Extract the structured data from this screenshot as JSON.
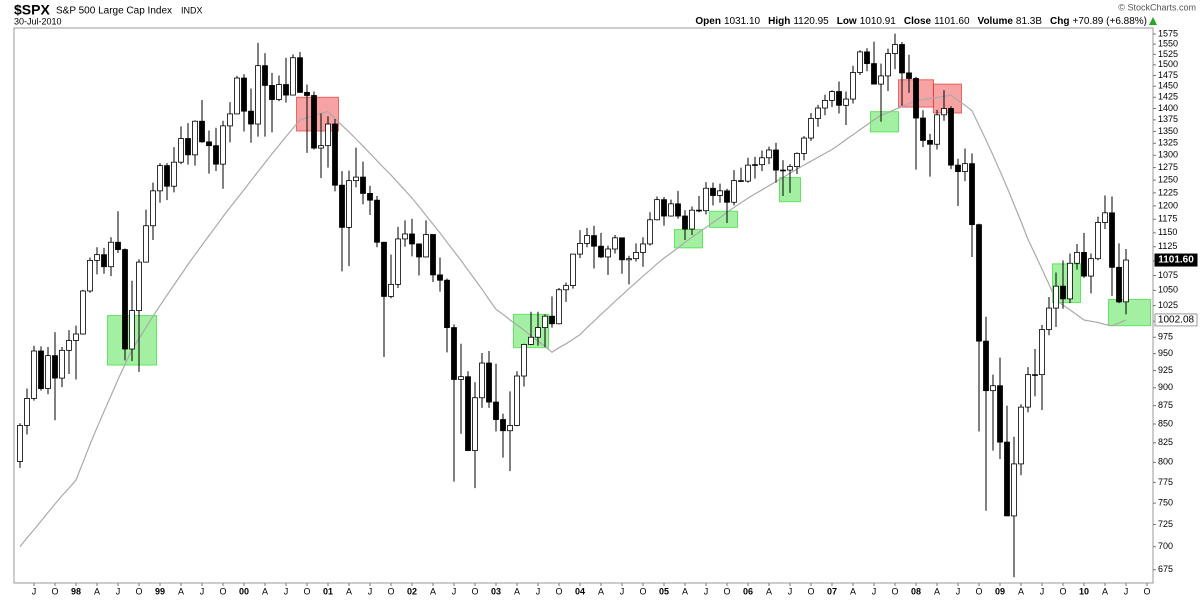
{
  "chart_data": {
    "type": "candlestick",
    "title": "$SPX",
    "subtitle": "S&P 500 Large Cap Index",
    "exchange": "INDX",
    "date": "30-Jul-2010",
    "copyright": "© StockCharts.com",
    "quote": [
      {
        "label": "Open",
        "value": "1031.10"
      },
      {
        "label": "High",
        "value": "1120.95"
      },
      {
        "label": "Low",
        "value": "1010.91"
      },
      {
        "label": "Close",
        "value": "1101.60"
      },
      {
        "label": "Volume",
        "value": "81.3B"
      },
      {
        "label": "Chg",
        "value": "+70.89 (+6.88%)"
      }
    ],
    "log_scale": true,
    "grid": false,
    "ylim": [
      661,
      1590
    ],
    "yticks": [
      675,
      700,
      725,
      750,
      775,
      800,
      825,
      850,
      875,
      900,
      925,
      950,
      975,
      1000,
      1025,
      1050,
      1075,
      1100,
      1125,
      1150,
      1175,
      1200,
      1225,
      1250,
      1275,
      1300,
      1325,
      1350,
      1375,
      1400,
      1425,
      1450,
      1475,
      1500,
      1525,
      1550,
      1575
    ],
    "categories": [
      null,
      null,
      "J",
      null,
      null,
      "O",
      null,
      null,
      "98",
      null,
      null,
      "A",
      null,
      null,
      "J",
      null,
      null,
      "O",
      null,
      null,
      "99",
      null,
      null,
      "A",
      null,
      null,
      "J",
      null,
      null,
      "O",
      null,
      null,
      "00",
      null,
      null,
      "A",
      null,
      null,
      "J",
      null,
      null,
      "O",
      null,
      null,
      "01",
      null,
      null,
      "A",
      null,
      null,
      "J",
      null,
      null,
      "O",
      null,
      null,
      "02",
      null,
      null,
      "A",
      null,
      null,
      "J",
      null,
      null,
      "O",
      null,
      null,
      "03",
      null,
      null,
      "A",
      null,
      null,
      "J",
      null,
      null,
      "O",
      null,
      null,
      "04",
      null,
      null,
      "A",
      null,
      null,
      "J",
      null,
      null,
      "O",
      null,
      null,
      "05",
      null,
      null,
      "A",
      null,
      null,
      "J",
      null,
      null,
      "O",
      null,
      null,
      "06",
      null,
      null,
      "A",
      null,
      null,
      "J",
      null,
      null,
      "O",
      null,
      null,
      "07",
      null,
      null,
      "A",
      null,
      null,
      "J",
      null,
      null,
      "O",
      null,
      null,
      "08",
      null,
      null,
      "A",
      null,
      null,
      "J",
      null,
      null,
      "O",
      null,
      null,
      "09",
      null,
      null,
      "A",
      null,
      null,
      "J",
      null,
      null,
      "O",
      null,
      null,
      "10",
      null,
      null,
      "A",
      null,
      null,
      "J",
      null,
      null,
      "O"
    ],
    "open": [
      801,
      848,
      885,
      954,
      899,
      947,
      914,
      955,
      970,
      980,
      1049,
      1101,
      1111,
      1090,
      1133,
      1120,
      957,
      1017,
      1098,
      1163,
      1229,
      1279,
      1238,
      1286,
      1335,
      1301,
      1372,
      1328,
      1320,
      1282,
      1362,
      1388,
      1469,
      1394,
      1366,
      1498,
      1452,
      1420,
      1454,
      1430,
      1517,
      1436,
      1429,
      1315,
      1320,
      1366,
      1240,
      1160,
      1249,
      1256,
      1224,
      1211,
      1133,
      1040,
      1060,
      1139,
      1148,
      1130,
      1107,
      1147,
      1076,
      1067,
      990,
      912,
      916,
      815,
      886,
      936,
      880,
      856,
      841,
      848,
      917,
      964,
      975,
      990,
      1008,
      996,
      1051,
      1058,
      1112,
      1131,
      1145,
      1126,
      1107,
      1121,
      1141,
      1102,
      1104,
      1115,
      1130,
      1174,
      1212,
      1181,
      1204,
      1181,
      1157,
      1192,
      1191,
      1234,
      1220,
      1229,
      1207,
      1249,
      1248,
      1280,
      1281,
      1295,
      1311,
      1270,
      1270,
      1277,
      1304,
      1336,
      1378,
      1401,
      1418,
      1438,
      1407,
      1421,
      1482,
      1531,
      1503,
      1455,
      1474,
      1527,
      1549,
      1481,
      1468,
      1379,
      1331,
      1323,
      1386,
      1400,
      1280,
      1267,
      1283,
      1165,
      969,
      896,
      903,
      826,
      735,
      798,
      873,
      919,
      919,
      987,
      1021,
      1057,
      1036,
      1096,
      1115,
      1074,
      1104,
      1169,
      1187,
      1089,
      1031.1,
      null,
      null,
      null
    ],
    "high": [
      851,
      899,
      962,
      961,
      960,
      983,
      960,
      986,
      993,
      1051,
      1106,
      1124,
      1123,
      1142,
      1190,
      1122,
      1066,
      1103,
      1193,
      1245,
      1284,
      1284,
      1317,
      1361,
      1368,
      1374,
      1419,
      1352,
      1358,
      1373,
      1414,
      1474,
      1478,
      1445,
      1553,
      1528,
      1481,
      1475,
      1517,
      1525,
      1531,
      1454,
      1438,
      1389,
      1383,
      1377,
      1268,
      1269,
      1316,
      1287,
      1239,
      1219,
      1134,
      1111,
      1161,
      1173,
      1176,
      1131,
      1173,
      1147,
      1106,
      1070,
      995,
      965,
      924,
      908,
      951,
      954,
      935,
      864,
      895,
      924,
      965,
      1015,
      1015,
      1011,
      1040,
      1054,
      1063,
      1112,
      1155,
      1159,
      1163,
      1150,
      1127,
      1146,
      1141,
      1109,
      1131,
      1142,
      1188,
      1218,
      1217,
      1212,
      1229,
      1192,
      1199,
      1219,
      1246,
      1245,
      1243,
      1233,
      1270,
      1275,
      1295,
      1297,
      1310,
      1318,
      1326,
      1290,
      1282,
      1306,
      1340,
      1390,
      1408,
      1431,
      1441,
      1461,
      1438,
      1498,
      1535,
      1540,
      1556,
      1503,
      1539,
      1576,
      1555,
      1524,
      1472,
      1396,
      1345,
      1397,
      1441,
      1405,
      1293,
      1314,
      1304,
      1167,
      1007,
      919,
      944,
      875,
      833,
      877,
      930,
      957,
      994,
      1039,
      1080,
      1101,
      1113,
      1130,
      1150,
      1113,
      1180,
      1220,
      1218,
      1131,
      1120.95,
      null,
      null,
      null
    ],
    "low": [
      793,
      836,
      882,
      896,
      891,
      855,
      901,
      920,
      912,
      979,
      1046,
      1077,
      1078,
      1074,
      1114,
      940,
      939,
      923,
      1097,
      1137,
      1206,
      1211,
      1226,
      1282,
      1281,
      1279,
      1326,
      1263,
      1268,
      1233,
      1327,
      1387,
      1350,
      1326,
      1339,
      1339,
      1348,
      1416,
      1413,
      1430,
      1436,
      1305,
      1312,
      1254,
      1275,
      1228,
      1082,
      1091,
      1236,
      1203,
      1183,
      1124,
      945,
      1037,
      1054,
      1125,
      1108,
      1075,
      1106,
      1064,
      1048,
      952,
      776,
      837,
      815,
      768,
      872,
      872,
      840,
      806,
      789,
      847,
      902,
      963,
      962,
      960,
      990,
      995,
      1031,
      1053,
      1105,
      1124,
      1087,
      1105,
      1076,
      1113,
      1078,
      1060,
      1099,
      1090,
      1127,
      1173,
      1163,
      1180,
      1176,
      1137,
      1146,
      1188,
      1184,
      1201,
      1206,
      1168,
      1201,
      1246,
      1245,
      1253,
      1268,
      1282,
      1245,
      1219,
      1225,
      1262,
      1290,
      1330,
      1360,
      1385,
      1403,
      1389,
      1364,
      1411,
      1476,
      1485,
      1454,
      1371,
      1439,
      1490,
      1406,
      1435,
      1271,
      1317,
      1257,
      1312,
      1373,
      1272,
      1200,
      1248,
      1107,
      840,
      741,
      815,
      804,
      735,
      667,
      784,
      866,
      888,
      869,
      978,
      991,
      1020,
      1029,
      1085,
      1071,
      1045,
      1101,
      1157,
      1041,
      1029,
      1010.91,
      null,
      null,
      null
    ],
    "close": [
      848,
      885,
      954,
      899,
      947,
      914,
      955,
      970,
      980,
      1049,
      1101,
      1111,
      1090,
      1133,
      1120,
      957,
      1017,
      1098,
      1163,
      1229,
      1279,
      1238,
      1286,
      1335,
      1301,
      1372,
      1328,
      1320,
      1282,
      1362,
      1388,
      1469,
      1394,
      1366,
      1498,
      1452,
      1420,
      1454,
      1430,
      1517,
      1436,
      1429,
      1315,
      1320,
      1366,
      1240,
      1160,
      1249,
      1256,
      1224,
      1211,
      1133,
      1040,
      1060,
      1139,
      1148,
      1130,
      1107,
      1147,
      1076,
      1067,
      990,
      912,
      916,
      815,
      886,
      936,
      880,
      856,
      841,
      848,
      917,
      964,
      975,
      990,
      1008,
      996,
      1051,
      1058,
      1112,
      1131,
      1145,
      1126,
      1107,
      1121,
      1141,
      1102,
      1104,
      1115,
      1130,
      1174,
      1212,
      1181,
      1204,
      1181,
      1157,
      1192,
      1191,
      1234,
      1220,
      1229,
      1207,
      1249,
      1248,
      1280,
      1281,
      1295,
      1311,
      1270,
      1270,
      1277,
      1304,
      1336,
      1378,
      1401,
      1418,
      1438,
      1407,
      1421,
      1482,
      1531,
      1503,
      1455,
      1474,
      1527,
      1549,
      1481,
      1468,
      1379,
      1331,
      1323,
      1386,
      1400,
      1280,
      1267,
      1283,
      1165,
      969,
      896,
      903,
      826,
      735,
      798,
      873,
      919,
      919,
      987,
      1021,
      1057,
      1036,
      1096,
      1115,
      1074,
      1104,
      1169,
      1187,
      1089,
      1031,
      1101.6,
      null,
      null,
      null
    ],
    "up_color": "#ffffff",
    "down_color": "#000000",
    "overlay": {
      "color": "#aaaaaa",
      "values": [
        700,
        710,
        719,
        729,
        739,
        749,
        759,
        768,
        778,
        800,
        823,
        845,
        867,
        889,
        912,
        934,
        956,
        973,
        990,
        1008,
        1025,
        1042,
        1059,
        1076,
        1094,
        1111,
        1128,
        1145,
        1162,
        1180,
        1197,
        1214,
        1231,
        1249,
        1267,
        1285,
        1303,
        1321,
        1339,
        1357,
        1375,
        1380,
        1384,
        1389,
        1393,
        1378,
        1363,
        1349,
        1334,
        1319,
        1304,
        1289,
        1274,
        1260,
        1245,
        1230,
        1215,
        1199,
        1182,
        1166,
        1150,
        1133,
        1117,
        1101,
        1084,
        1068,
        1052,
        1035,
        1019,
        1011,
        1002,
        994,
        986,
        977,
        969,
        961,
        952,
        959,
        965,
        972,
        979,
        990,
        1000,
        1011,
        1021,
        1032,
        1042,
        1053,
        1063,
        1074,
        1084,
        1095,
        1105,
        1114,
        1123,
        1133,
        1142,
        1151,
        1160,
        1169,
        1178,
        1188,
        1197,
        1206,
        1215,
        1223,
        1231,
        1239,
        1247,
        1255,
        1264,
        1272,
        1280,
        1288,
        1296,
        1304,
        1312,
        1322,
        1333,
        1343,
        1354,
        1364,
        1375,
        1385,
        1391,
        1398,
        1404,
        1411,
        1417,
        1420,
        1422,
        1425,
        1427,
        1430,
        1418,
        1407,
        1395,
        1363,
        1332,
        1300,
        1268,
        1236,
        1203,
        1171,
        1138,
        1112,
        1086,
        1060,
        1034,
        1026,
        1018,
        1010,
        1002,
        1000,
        998,
        995,
        993,
        997,
        1002.08,
        null,
        null,
        null
      ]
    },
    "close_label": {
      "value": 1101.6,
      "label": "1101.60"
    },
    "overlay_label": {
      "value": 1002.08,
      "label": "1002.08"
    },
    "highlights": [
      {
        "color": "#33dd33",
        "months": [
          13,
          19
        ],
        "y": [
          933,
          1009
        ]
      },
      {
        "color": "#ee3333",
        "months": [
          40,
          45
        ],
        "y": [
          1351,
          1425
        ]
      },
      {
        "color": "#33dd33",
        "months": [
          71,
          75
        ],
        "y": [
          959,
          1011
        ]
      },
      {
        "color": "#33dd33",
        "months": [
          94,
          97
        ],
        "y": [
          1123,
          1156
        ]
      },
      {
        "color": "#33dd33",
        "months": [
          99,
          102
        ],
        "y": [
          1160,
          1190
        ]
      },
      {
        "color": "#33dd33",
        "months": [
          109,
          111
        ],
        "y": [
          1208,
          1255
        ]
      },
      {
        "color": "#33dd33",
        "months": [
          122,
          125
        ],
        "y": [
          1349,
          1393
        ]
      },
      {
        "color": "#ee3333",
        "months": [
          126,
          130
        ],
        "y": [
          1403,
          1465
        ]
      },
      {
        "color": "#ee3333",
        "months": [
          131,
          134
        ],
        "y": [
          1390,
          1455
        ]
      },
      {
        "color": "#33dd33",
        "months": [
          148,
          151
        ],
        "y": [
          1030,
          1095
        ]
      },
      {
        "color": "#33dd33",
        "months": [
          156,
          161
        ],
        "y": [
          993,
          1035
        ]
      }
    ]
  }
}
